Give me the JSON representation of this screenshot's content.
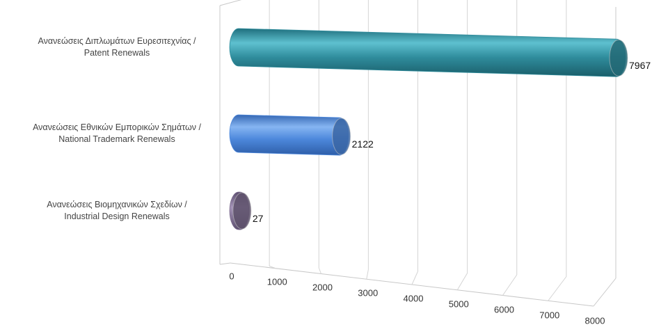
{
  "chart_data": {
    "type": "bar3d",
    "categories": [
      [
        "Ανανεώσεις Διπλωμάτων Ευρεσιτεχνίας /",
        "Patent Renewals"
      ],
      [
        "Ανανεώσεις Εθνικών Εμπορικών Σημάτων /",
        "National Trademark Renewals"
      ],
      [
        "Ανανεώσεις Βιομηχανικών Σχεδίων  /",
        "Industrial Design Renewals"
      ]
    ],
    "values": [
      7967,
      2122,
      27
    ],
    "colors": [
      "#2f8c9c",
      "#4d88dc",
      "#7c6c8e"
    ],
    "xlim": [
      0,
      8000
    ],
    "xticks": [
      0,
      1000,
      2000,
      3000,
      4000,
      5000,
      6000,
      7000,
      8000
    ],
    "grid": true
  }
}
